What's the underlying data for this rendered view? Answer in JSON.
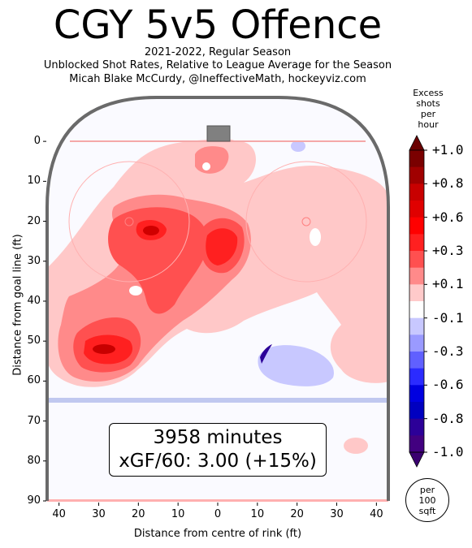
{
  "title": "CGY 5v5 Offence",
  "subtitle_lines": [
    "2021-2022, Regular Season",
    "Unblocked Shot Rates, Relative to League Average for the Season",
    "Micah Blake McCurdy, @IneffectiveMath, hockeyviz.com"
  ],
  "stats": {
    "minutes": "3958 minutes",
    "xgf": "xGF/60: 3.00 (+15%)"
  },
  "colorbar": {
    "title_lines": [
      "Excess",
      "shots",
      "per hour"
    ],
    "tick_labels": [
      "+1.0",
      "+0.8",
      "+0.6",
      "+0.3",
      "+0.1",
      "-0.1",
      "-0.3",
      "-0.6",
      "-0.8",
      "-1.0"
    ],
    "colors": [
      "#7a0000",
      "#a00000",
      "#c80000",
      "#e00000",
      "#ff0000",
      "#ff2020",
      "#ff5050",
      "#ff8a8a",
      "#ffcaca",
      "#ffffff",
      "#c8c8ff",
      "#9a9aff",
      "#6060ff",
      "#2b2bff",
      "#0000e0",
      "#0000c0",
      "#2c0098",
      "#420080"
    ]
  },
  "area_note_lines": [
    "per",
    "100",
    "sqft"
  ],
  "chart_data": {
    "type": "heatmap",
    "title": "CGY 5v5 Offence",
    "xlabel": "Distance from centre of rink (ft)",
    "ylabel": "Distance from goal line (ft)",
    "xlim": [
      43,
      -43
    ],
    "ylim": [
      90,
      -11
    ],
    "x_ticks": [
      "40",
      "30",
      "20",
      "10",
      "0",
      "10",
      "20",
      "30",
      "40"
    ],
    "y_ticks": [
      "0",
      "10",
      "20",
      "30",
      "40",
      "50",
      "60",
      "70",
      "80",
      "90"
    ],
    "colorbar_range": [
      -1.0,
      1.0
    ],
    "hotspots": [
      {
        "x": 30,
        "y": 52,
        "value": 0.8
      },
      {
        "x": 17,
        "y": 22,
        "value": 0.6
      },
      {
        "x": 1,
        "y": 29,
        "value": 0.6
      },
      {
        "x": 3,
        "y": 6,
        "value": 0.3
      },
      {
        "x": -22,
        "y": 30,
        "value": 0.1
      },
      {
        "x": -17,
        "y": 55,
        "value": -0.3
      },
      {
        "x": -20,
        "y": 1,
        "value": -0.1
      }
    ]
  }
}
